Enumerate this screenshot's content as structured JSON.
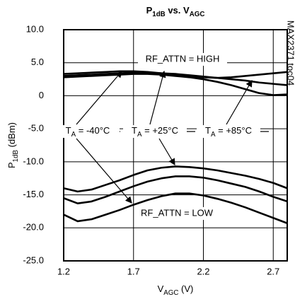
{
  "chart_data": {
    "type": "line",
    "title": [
      "P",
      "1dB",
      " vs. V",
      "AGC"
    ],
    "y_label": [
      "P",
      "1dB",
      " (dBm)"
    ],
    "x_label": [
      "V",
      "AGC",
      " (V)"
    ],
    "side_note": "MAX2371 toc04",
    "x": [
      1.2,
      1.3,
      1.4,
      1.5,
      1.6,
      1.7,
      1.8,
      1.9,
      2.0,
      2.1,
      2.2,
      2.3,
      2.4,
      2.5,
      2.6,
      2.7,
      2.8
    ],
    "series": [
      {
        "color": "#000000",
        "values": [
          3.0,
          3.1,
          3.2,
          3.3,
          3.4,
          3.5,
          3.5,
          3.4,
          3.3,
          3.1,
          2.9,
          2.7,
          2.5,
          2.3,
          2.0,
          1.8,
          1.6
        ]
      },
      {
        "color": "#000000",
        "values": [
          3.3,
          3.4,
          3.5,
          3.6,
          3.7,
          3.7,
          3.6,
          3.4,
          3.2,
          3.0,
          2.8,
          2.7,
          2.8,
          3.0,
          3.2,
          3.4,
          3.6
        ]
      },
      {
        "color": "#000000",
        "values": [
          2.8,
          2.9,
          3.0,
          3.1,
          3.2,
          3.3,
          3.3,
          3.2,
          3.0,
          2.8,
          2.5,
          2.1,
          1.6,
          1.0,
          0.4,
          0.1,
          0.2
        ]
      },
      {
        "color": "#000000",
        "values": [
          -14.0,
          -14.5,
          -14.2,
          -13.5,
          -12.8,
          -12.0,
          -11.3,
          -10.9,
          -10.7,
          -10.8,
          -11.0,
          -11.3,
          -11.7,
          -12.1,
          -12.6,
          -13.2,
          -14.0
        ]
      },
      {
        "color": "#000000",
        "values": [
          -15.5,
          -16.3,
          -16.0,
          -15.3,
          -14.5,
          -13.7,
          -13.0,
          -12.5,
          -12.2,
          -12.2,
          -12.4,
          -12.8,
          -13.3,
          -13.8,
          -14.5,
          -15.3,
          -16.0
        ]
      },
      {
        "color": "#000000",
        "values": [
          -18.0,
          -19.0,
          -18.7,
          -18.0,
          -17.3,
          -16.5,
          -15.8,
          -15.2,
          -14.8,
          -14.8,
          -15.1,
          -15.6,
          -16.2,
          -16.9,
          -17.7,
          -18.5,
          -19.3
        ]
      }
    ],
    "annotations": [
      {
        "text": "RF_ATTN = HIGH"
      },
      {
        "text": "RF_ATTN = LOW"
      },
      {
        "text": [
          "T",
          "A",
          " = -40°C"
        ]
      },
      {
        "text": [
          "T",
          "A",
          " = +25°C"
        ]
      },
      {
        "text": [
          "T",
          "A",
          " = +85°C"
        ]
      }
    ],
    "xlim": [
      1.2,
      2.8
    ],
    "xticks": [
      1.2,
      1.7,
      2.2,
      2.7
    ],
    "ylim": [
      -25,
      10
    ],
    "yticks": [
      {
        "value": -25,
        "label": "-25.0"
      },
      {
        "value": -20,
        "label": "-20.0"
      },
      {
        "value": -15,
        "label": "-15.0"
      },
      {
        "value": -10,
        "label": "-10.0"
      },
      {
        "value": -5,
        "label": "-5.0"
      },
      0,
      {
        "value": 5,
        "label": "5.0"
      },
      {
        "value": 10,
        "label": "10.0"
      }
    ],
    "grid": true
  }
}
